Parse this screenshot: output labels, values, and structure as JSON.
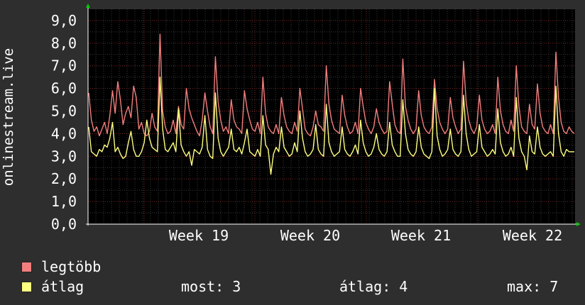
{
  "chart_data": {
    "type": "line",
    "ylabel": "onlinestream.live",
    "y_ticks": [
      "0,0",
      "1,0",
      "2,0",
      "3,0",
      "4,0",
      "5,0",
      "6,0",
      "7,0",
      "8,0",
      "9,0"
    ],
    "ylim": [
      0,
      9.5
    ],
    "x_ticks": [
      "Week 19",
      "Week 20",
      "Week 21",
      "Week 22"
    ],
    "grid": true,
    "legend_placement": "bottom-left",
    "series": [
      {
        "name": "legtöbb",
        "color": "#f37e7e",
        "values": [
          5.8,
          4.6,
          4.1,
          4.3,
          3.9,
          4.2,
          4.5,
          4.0,
          4.8,
          5.9,
          4.9,
          6.3,
          5.5,
          4.4,
          4.9,
          5.2,
          4.7,
          6.1,
          5.6,
          4.2,
          4.5,
          4.0,
          3.9,
          4.1,
          4.9,
          4.3,
          4.1,
          8.4,
          5.0,
          4.3,
          4.0,
          4.1,
          4.6,
          4.0,
          5.2,
          4.4,
          4.2,
          6.0,
          5.1,
          4.7,
          4.4,
          4.1,
          3.9,
          4.6,
          5.8,
          5.0,
          4.3,
          4.0,
          7.4,
          5.4,
          4.6,
          4.1,
          4.3,
          4.0,
          5.5,
          4.6,
          4.3,
          4.2,
          4.0,
          5.9,
          5.1,
          4.6,
          4.2,
          4.1,
          4.5,
          4.0,
          6.5,
          4.9,
          4.3,
          4.1,
          4.0,
          4.4,
          4.0,
          5.6,
          4.8,
          4.3,
          4.1,
          4.0,
          4.5,
          4.1,
          6.0,
          5.1,
          4.2,
          4.0,
          3.9,
          4.3,
          5.0,
          4.4,
          4.3,
          4.1,
          7.0,
          5.3,
          4.6,
          4.2,
          4.1,
          4.0,
          5.7,
          4.8,
          4.3,
          4.0,
          4.1,
          4.5,
          4.0,
          6.0,
          5.2,
          4.5,
          4.2,
          4.0,
          4.3,
          5.1,
          4.5,
          4.2,
          4.0,
          4.1,
          6.3,
          5.3,
          4.4,
          4.1,
          4.0,
          7.3,
          5.2,
          4.6,
          4.2,
          4.0,
          4.2,
          5.9,
          4.8,
          4.3,
          4.1,
          4.0,
          4.3,
          6.4,
          5.1,
          4.5,
          4.2,
          4.0,
          4.2,
          5.6,
          4.7,
          4.3,
          4.0,
          4.2,
          7.2,
          5.4,
          4.6,
          4.2,
          4.0,
          4.3,
          5.7,
          4.6,
          4.2,
          4.0,
          4.1,
          4.4,
          4.0,
          6.5,
          5.0,
          4.4,
          4.1,
          4.0,
          4.6,
          4.1,
          7.0,
          5.2,
          4.3,
          4.1,
          4.0,
          5.3,
          4.4,
          4.2,
          6.2,
          4.9,
          4.3,
          4.1,
          4.0,
          4.4,
          4.0,
          7.6,
          5.6,
          4.5,
          4.1,
          4.0,
          4.3,
          4.1,
          4.0
        ]
      },
      {
        "name": "átlag",
        "color": "#ffff80",
        "values": [
          4.3,
          3.2,
          3.1,
          3.0,
          3.3,
          3.2,
          3.5,
          3.4,
          3.8,
          4.5,
          3.2,
          3.4,
          3.1,
          2.9,
          3.0,
          3.6,
          4.1,
          3.3,
          3.0,
          3.0,
          3.2,
          3.6,
          4.6,
          3.8,
          3.4,
          3.3,
          3.2,
          6.5,
          4.2,
          3.3,
          3.2,
          3.4,
          3.6,
          3.2,
          5.1,
          3.5,
          3.2,
          3.0,
          3.2,
          2.6,
          3.3,
          3.2,
          3.1,
          3.4,
          4.8,
          3.3,
          3.0,
          2.9,
          5.8,
          3.8,
          3.2,
          3.0,
          3.2,
          3.4,
          4.2,
          3.3,
          3.2,
          3.4,
          3.1,
          3.6,
          4.2,
          3.2,
          3.1,
          3.0,
          3.3,
          3.0,
          4.8,
          3.5,
          3.3,
          2.2,
          3.1,
          3.4,
          3.2,
          4.3,
          3.4,
          3.2,
          3.0,
          3.1,
          3.6,
          3.2,
          5.0,
          3.8,
          3.2,
          3.0,
          3.1,
          3.3,
          4.4,
          3.3,
          3.1,
          3.0,
          5.3,
          3.6,
          3.2,
          3.0,
          3.1,
          3.2,
          4.3,
          3.3,
          3.1,
          3.0,
          3.2,
          3.5,
          3.1,
          4.6,
          3.6,
          3.2,
          3.0,
          3.1,
          3.4,
          4.0,
          3.3,
          3.1,
          3.0,
          3.2,
          4.5,
          3.5,
          3.2,
          3.0,
          3.0,
          5.5,
          4.0,
          3.3,
          3.1,
          3.0,
          3.2,
          4.3,
          3.4,
          3.1,
          3.0,
          2.9,
          3.2,
          6.0,
          3.9,
          3.3,
          3.0,
          3.1,
          3.3,
          4.2,
          3.3,
          3.1,
          3.0,
          3.2,
          5.7,
          4.0,
          3.3,
          3.0,
          3.1,
          3.2,
          4.4,
          3.4,
          3.2,
          3.0,
          3.1,
          3.3,
          3.1,
          5.1,
          3.6,
          3.2,
          3.0,
          3.1,
          3.4,
          3.0,
          5.6,
          3.8,
          3.2,
          3.0,
          2.4,
          3.9,
          3.2,
          3.1,
          4.3,
          3.4,
          3.1,
          3.0,
          3.1,
          3.2,
          3.0,
          6.1,
          4.0,
          3.2,
          3.0,
          3.3,
          3.2,
          3.2,
          3.2
        ]
      }
    ]
  },
  "stats": {
    "most": "most: 3",
    "atlag": "átlag: 4",
    "max": "max: 7"
  },
  "colors": {
    "background": "#2e2e2e",
    "plot_background": "#000000",
    "grid_minor": "#3a3a3a",
    "grid_major": "#7a2a2a",
    "axis": "#ffffff",
    "axis_arrow": "#00cc00"
  }
}
